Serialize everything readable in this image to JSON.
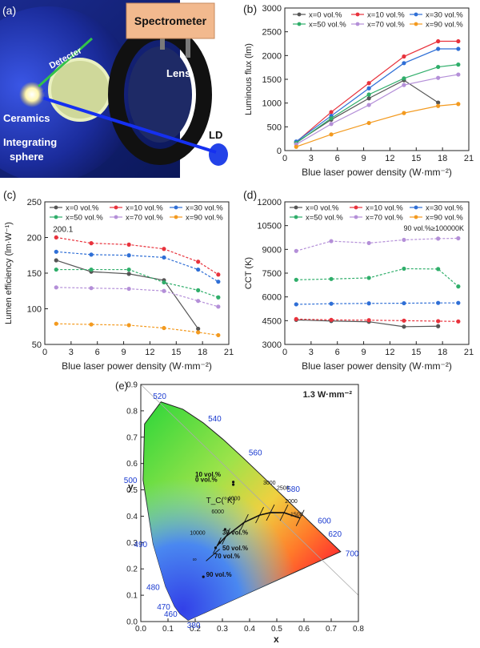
{
  "panel_a": {
    "label": "(a)",
    "spectrometer": "Spectrometer",
    "detecter": "Detecter",
    "lens": "Lens",
    "ld": "LD",
    "ceramics": "Ceramics",
    "sphere_line1": "Integrating",
    "sphere_line2": "sphere"
  },
  "colors": {
    "x0": "#555555",
    "x10": "#e8323c",
    "x30": "#2f6fd6",
    "x50": "#2fae6a",
    "x70": "#b48fd8",
    "x90": "#f39a1f"
  },
  "chart_data": [
    {
      "id": "b",
      "panel_label": "(b)",
      "type": "line",
      "xlabel": "Blue laser power density (W·mm⁻²)",
      "ylabel": "Luminous flux (lm)",
      "xlim": [
        0,
        21
      ],
      "ylim": [
        0,
        3000
      ],
      "xticks": [
        0,
        3,
        6,
        9,
        12,
        15,
        18,
        21
      ],
      "yticks": [
        0,
        500,
        1000,
        1500,
        2000,
        2500,
        3000
      ],
      "series": [
        {
          "name": "x=0 vol.%",
          "key": "x0",
          "x": [
            1.3,
            5.3,
            9.6,
            13.6,
            17.5
          ],
          "y": [
            170,
            650,
            1100,
            1480,
            1010
          ]
        },
        {
          "name": "x=10 vol.%",
          "key": "x10",
          "x": [
            1.3,
            5.3,
            9.6,
            13.6,
            17.5,
            19.8
          ],
          "y": [
            180,
            810,
            1420,
            1980,
            2300,
            2300
          ]
        },
        {
          "name": "x=30 vol.%",
          "key": "x30",
          "x": [
            1.3,
            5.3,
            9.6,
            13.6,
            17.5,
            19.8
          ],
          "y": [
            190,
            730,
            1310,
            1840,
            2140,
            2140
          ]
        },
        {
          "name": "x=50 vol.%",
          "key": "x50",
          "x": [
            1.3,
            5.3,
            9.6,
            13.6,
            17.5,
            19.8
          ],
          "y": [
            160,
            680,
            1180,
            1520,
            1760,
            1810
          ]
        },
        {
          "name": "x=70 vol.%",
          "key": "x70",
          "x": [
            1.3,
            5.3,
            9.6,
            13.6,
            17.5,
            19.8
          ],
          "y": [
            130,
            560,
            960,
            1380,
            1530,
            1600
          ]
        },
        {
          "name": "x=90 vol.%",
          "key": "x90",
          "x": [
            1.3,
            5.3,
            9.6,
            13.6,
            17.5,
            19.8
          ],
          "y": [
            80,
            340,
            580,
            790,
            940,
            980
          ]
        }
      ]
    },
    {
      "id": "c",
      "panel_label": "(c)",
      "type": "line",
      "xlabel": "Blue laser power density (W·mm⁻²)",
      "ylabel": "Lumen efficiency (lm·W⁻¹)",
      "xlim": [
        0,
        21
      ],
      "ylim": [
        50,
        250
      ],
      "xticks": [
        0,
        3,
        6,
        9,
        12,
        15,
        18,
        21
      ],
      "yticks": [
        50,
        100,
        150,
        200,
        250
      ],
      "annotation": "200.1",
      "series": [
        {
          "name": "x=0 vol.%",
          "key": "x0",
          "x": [
            1.3,
            5.3,
            9.6,
            13.6,
            17.5
          ],
          "y": [
            168,
            152,
            149,
            140,
            72
          ]
        },
        {
          "name": "x=10 vol.%",
          "key": "x10",
          "x": [
            1.3,
            5.3,
            9.6,
            13.6,
            17.5,
            19.8
          ],
          "y": [
            200.1,
            192,
            190,
            184,
            166,
            148
          ]
        },
        {
          "name": "x=30 vol.%",
          "key": "x30",
          "x": [
            1.3,
            5.3,
            9.6,
            13.6,
            17.5,
            19.8
          ],
          "y": [
            180,
            176,
            175,
            172,
            155,
            138
          ]
        },
        {
          "name": "x=50 vol.%",
          "key": "x50",
          "x": [
            1.3,
            5.3,
            9.6,
            13.6,
            17.5,
            19.8
          ],
          "y": [
            155,
            155,
            155,
            137,
            126,
            116
          ]
        },
        {
          "name": "x=70 vol.%",
          "key": "x70",
          "x": [
            1.3,
            5.3,
            9.6,
            13.6,
            17.5,
            19.8
          ],
          "y": [
            130,
            129,
            128,
            125,
            111,
            103
          ]
        },
        {
          "name": "x=90 vol.%",
          "key": "x90",
          "x": [
            1.3,
            5.3,
            9.6,
            13.6,
            17.5,
            19.8
          ],
          "y": [
            79,
            78,
            77,
            73,
            67,
            63
          ]
        }
      ]
    },
    {
      "id": "d",
      "panel_label": "(d)",
      "type": "line",
      "xlabel": "Blue laser power density (W·mm⁻²)",
      "ylabel": "CCT (K)",
      "xlim": [
        0,
        21
      ],
      "ylim": [
        3000,
        12000
      ],
      "xticks": [
        0,
        3,
        6,
        9,
        12,
        15,
        18,
        21
      ],
      "yticks": [
        3000,
        4500,
        6000,
        7500,
        9000,
        10500,
        12000
      ],
      "annotation": "90 vol.%≥100000K",
      "series": [
        {
          "name": "x=0 vol.%",
          "key": "x0",
          "x": [
            1.3,
            5.3,
            9.6,
            13.6,
            17.5
          ],
          "y": [
            4550,
            4480,
            4430,
            4120,
            4150
          ]
        },
        {
          "name": "x=10 vol.%",
          "key": "x10",
          "x": [
            1.3,
            5.3,
            9.6,
            13.6,
            17.5,
            19.8
          ],
          "y": [
            4600,
            4550,
            4530,
            4500,
            4470,
            4450
          ]
        },
        {
          "name": "x=30 vol.%",
          "key": "x30",
          "x": [
            1.3,
            5.3,
            9.6,
            13.6,
            17.5,
            19.8
          ],
          "y": [
            5530,
            5570,
            5590,
            5600,
            5620,
            5620
          ]
        },
        {
          "name": "x=50 vol.%",
          "key": "x50",
          "x": [
            1.3,
            5.3,
            9.6,
            13.6,
            17.5,
            19.8
          ],
          "y": [
            7080,
            7130,
            7200,
            7780,
            7760,
            6660
          ]
        },
        {
          "name": "x=70 vol.%",
          "key": "x70",
          "x": [
            1.3,
            5.3,
            9.6,
            13.6,
            17.5,
            19.8
          ],
          "y": [
            8900,
            9520,
            9400,
            9600,
            9680,
            9700
          ]
        },
        {
          "name": "x=90 vol.%",
          "key": "x90",
          "x": [],
          "y": []
        }
      ]
    }
  ],
  "cie": {
    "panel_label": "(e)",
    "title": "1.3 W·mm⁻²",
    "xlabel": "x",
    "ylabel": "y",
    "xticks": [
      "0.0",
      "0.1",
      "0.2",
      "0.3",
      "0.4",
      "0.5",
      "0.6",
      "0.7",
      "0.8"
    ],
    "yticks": [
      "0.0",
      "0.1",
      "0.2",
      "0.3",
      "0.4",
      "0.5",
      "0.6",
      "0.7",
      "0.8",
      "0.9"
    ],
    "wavelengths": [
      "380",
      "460",
      "470",
      "480",
      "490",
      "500",
      "520",
      "540",
      "560",
      "580",
      "600",
      "620",
      "700"
    ],
    "cct_label": "T_C(°K)",
    "cct_temps": [
      "10000",
      "6000",
      "4000",
      "3000",
      "2500",
      "2000",
      "1500",
      "∞"
    ],
    "labels": [
      "10 vol.%",
      "0 vol.%",
      "30 vol.%",
      "50 vol.%",
      "70 vol.%",
      "90 vol.%"
    ]
  }
}
